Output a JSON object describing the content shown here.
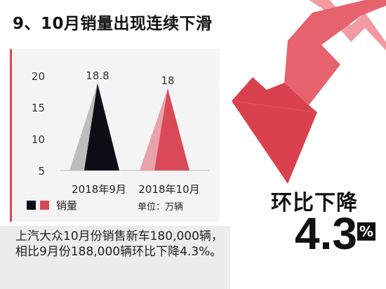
{
  "title": "9、10月销量出现连续下滑",
  "colors": {
    "accent": "#d94a56",
    "dark": "#0d0d16",
    "light_gray": "#bdbdbd",
    "light_red": "#e8a3aa"
  },
  "chart_data": {
    "type": "area",
    "categories": [
      "2018年9月",
      "2018年10月"
    ],
    "values": [
      18.8,
      18
    ],
    "data_labels": [
      "18.8",
      "18"
    ],
    "y_ticks": [
      "5",
      "10",
      "15",
      "20"
    ],
    "ylim": [
      5,
      20
    ],
    "grid": false,
    "series": [
      {
        "name": "销量",
        "values": [
          18.8,
          18
        ]
      }
    ],
    "legend_label": "销量",
    "unit_label": "单位：万辆"
  },
  "summary_text": "上汽大众10月份销售新车180,000辆，相比9月份188,000辆环比下降4.3%。",
  "ratio": {
    "label": "环比下降",
    "value": "4.3",
    "unit": "%"
  }
}
